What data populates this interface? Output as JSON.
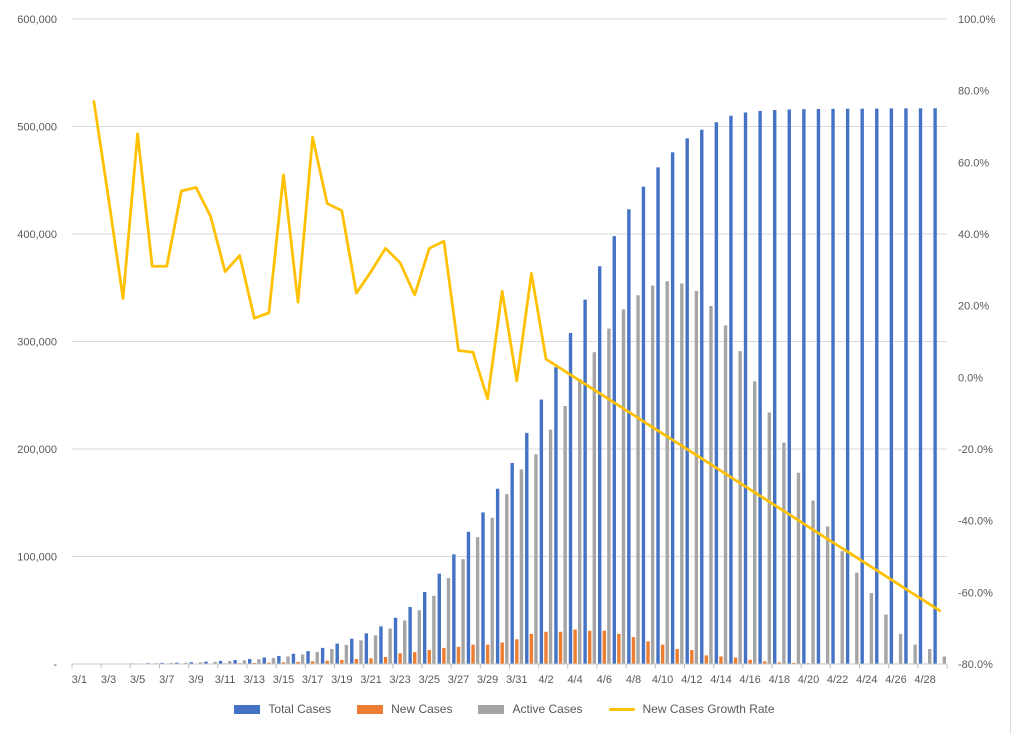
{
  "chart_data": {
    "type": "combo-bar-line",
    "title": "",
    "x": [
      "3/1",
      "3/2",
      "3/3",
      "3/4",
      "3/5",
      "3/6",
      "3/7",
      "3/8",
      "3/9",
      "3/10",
      "3/11",
      "3/12",
      "3/13",
      "3/14",
      "3/15",
      "3/16",
      "3/17",
      "3/18",
      "3/19",
      "3/20",
      "3/21",
      "3/22",
      "3/23",
      "3/24",
      "3/25",
      "3/26",
      "3/27",
      "3/28",
      "3/29",
      "3/30",
      "3/31",
      "4/1",
      "4/2",
      "4/3",
      "4/4",
      "4/5",
      "4/6",
      "4/7",
      "4/8",
      "4/9",
      "4/10",
      "4/11",
      "4/12",
      "4/13",
      "4/14",
      "4/15",
      "4/16",
      "4/17",
      "4/18",
      "4/19",
      "4/20",
      "4/21",
      "4/22",
      "4/23",
      "4/24",
      "4/25",
      "4/26",
      "4/27",
      "4/28",
      "4/29"
    ],
    "x_label_interval": 2,
    "series": [
      {
        "name": "Total Cases",
        "type": "bar",
        "axis": "left",
        "color": "#4472C4",
        "values": [
          200,
          250,
          300,
          400,
          600,
          800,
          1000,
          1300,
          1700,
          2200,
          2900,
          3700,
          4700,
          6000,
          7500,
          9500,
          12000,
          15000,
          19000,
          23500,
          28500,
          35000,
          43000,
          53000,
          67000,
          84000,
          102000,
          123000,
          141000,
          163000,
          187000,
          215000,
          246000,
          276000,
          308000,
          339000,
          370000,
          398000,
          423000,
          444000,
          462000,
          476000,
          489000,
          497000,
          504000,
          510000,
          513000,
          514500,
          515300,
          515800,
          516100,
          516300,
          516400,
          516500,
          516600,
          516700,
          516800,
          516800,
          516900,
          517000
        ]
      },
      {
        "name": "New Cases",
        "type": "bar",
        "axis": "left",
        "color": "#ED7D31",
        "values": [
          50,
          50,
          60,
          100,
          150,
          200,
          250,
          300,
          400,
          500,
          700,
          800,
          1000,
          1300,
          1600,
          2000,
          2500,
          3100,
          3800,
          4600,
          5300,
          6500,
          10000,
          11000,
          13000,
          15000,
          16000,
          18000,
          18000,
          20000,
          23000,
          28000,
          30000,
          30000,
          32000,
          31000,
          31000,
          28000,
          25000,
          21000,
          18000,
          14000,
          13000,
          8000,
          7000,
          6000,
          4000,
          2500,
          1500,
          1000,
          800,
          600,
          500,
          400,
          400,
          300,
          300,
          200,
          200,
          200
        ]
      },
      {
        "name": "Active Cases",
        "type": "bar",
        "axis": "left",
        "color": "#A5A5A5",
        "values": [
          190,
          230,
          280,
          370,
          550,
          740,
          920,
          1200,
          1600,
          2000,
          2700,
          3400,
          4400,
          5600,
          7000,
          8900,
          11200,
          14000,
          17800,
          22000,
          26700,
          33000,
          40500,
          50000,
          63500,
          80000,
          97500,
          118000,
          136000,
          158000,
          181000,
          195000,
          218000,
          240000,
          265000,
          290000,
          312000,
          330000,
          343000,
          352000,
          356000,
          354000,
          347000,
          333000,
          315000,
          291000,
          263000,
          234000,
          206000,
          178000,
          152000,
          128000,
          105000,
          85000,
          66000,
          46000,
          28000,
          18000,
          14000,
          7000
        ]
      },
      {
        "name": "New Cases Growth Rate",
        "type": "line",
        "axis": "right",
        "color": "#FFC000",
        "values": [
          null,
          77,
          50,
          22,
          68,
          31,
          31,
          52,
          53,
          45,
          29.5,
          34,
          16.5,
          18,
          56.5,
          21,
          67,
          48.5,
          46.5,
          23.5,
          29.5,
          36,
          32,
          23,
          36,
          38,
          7.5,
          7,
          -6,
          24,
          -1,
          29,
          5.1,
          2.5,
          -0.1,
          -2.7,
          -5.3,
          -7.9,
          -10.5,
          -13.1,
          -15.7,
          -18.3,
          -20.9,
          -23.5,
          -26.1,
          -28.7,
          -31.3,
          -33.9,
          -36.5,
          -39.1,
          -41.7,
          -44.3,
          -46.9,
          -49.5,
          -52.1,
          -54.7,
          -57.3,
          -59.9,
          -62.5,
          -65.1
        ]
      }
    ],
    "left_axis": {
      "min": 0,
      "max": 600000,
      "step": 100000,
      "labels": [
        "600,000",
        "500,000",
        "400,000",
        "300,000",
        "200,000",
        "100,000",
        "-"
      ]
    },
    "right_axis": {
      "min": -80,
      "max": 100,
      "step": 20,
      "labels": [
        "100.0%",
        "80.0%",
        "60.0%",
        "40.0%",
        "20.0%",
        "0.0%",
        "-20.0%",
        "-40.0%",
        "-60.0%",
        "-80.0%"
      ]
    },
    "legend_position": "bottom",
    "grid": true,
    "style": {
      "gridline_color": "#D9D9D9",
      "axis_line_color": "#C9C9C9",
      "tick_color": "#BFBFBF",
      "label_color": "#595959",
      "background": "#FFFFFF"
    }
  }
}
